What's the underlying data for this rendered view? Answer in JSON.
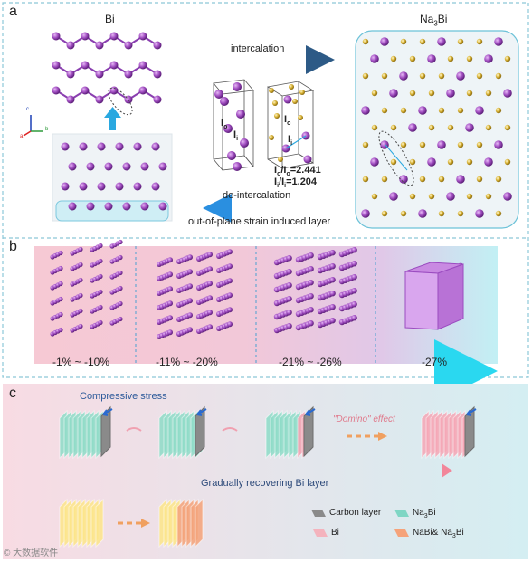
{
  "panels": {
    "a": {
      "label": "a",
      "left_title": "Bi",
      "right_title_main": "Na",
      "right_title_sub": "3",
      "right_title_end": "Bi",
      "arrow_top": "intercalation",
      "arrow_bottom": "de-intercalation",
      "caption": "out-of-plane strain induced layer",
      "axes": {
        "c": "c",
        "b": "b",
        "a": "a"
      },
      "unit_cell_labels": {
        "io": "I",
        "io_sub": "o",
        "ii": "I",
        "ii_sub": "i",
        "ratio1": "Iₒ/Iₒ=2.441",
        "ratio1_parts": {
          "a": "I",
          "b": "o",
          "c": "/I",
          "d": "o",
          "e": "=2.441"
        },
        "ratio2_parts": {
          "a": "I",
          "b": "i",
          "c": "/I",
          "d": "i",
          "e": "=1.204"
        }
      }
    },
    "b": {
      "label": "b",
      "strains": [
        "-1% ~ -10%",
        "-11% ~  -20%",
        "-21% ~ -26%",
        "-27%"
      ]
    },
    "c": {
      "label": "c",
      "compressive": "Compressive stress",
      "domino": "\"Domino\" effect",
      "recovering": "Gradually recovering Bi layer",
      "legend": [
        {
          "label": "Carbon layer",
          "color": "#8a8a8a"
        },
        {
          "label_main": "Na",
          "label_sub": "3",
          "label_end": "Bi",
          "color": "#7fd6c4"
        },
        {
          "label": "Bi",
          "color": "#f4b3bd"
        },
        {
          "label": "NaBi& Na",
          "label_sub": "3",
          "label_end": "Bi",
          "color": "#f5a37a"
        }
      ],
      "watermark": "© 大数据软件"
    }
  },
  "colors": {
    "bi_atom": "#a24fc2",
    "na_atom": "#d8b234",
    "border_dashed": "#8cc8d8",
    "panel_c_bg_left": "#f7dde4",
    "panel_c_bg_right": "#d7eef2"
  }
}
